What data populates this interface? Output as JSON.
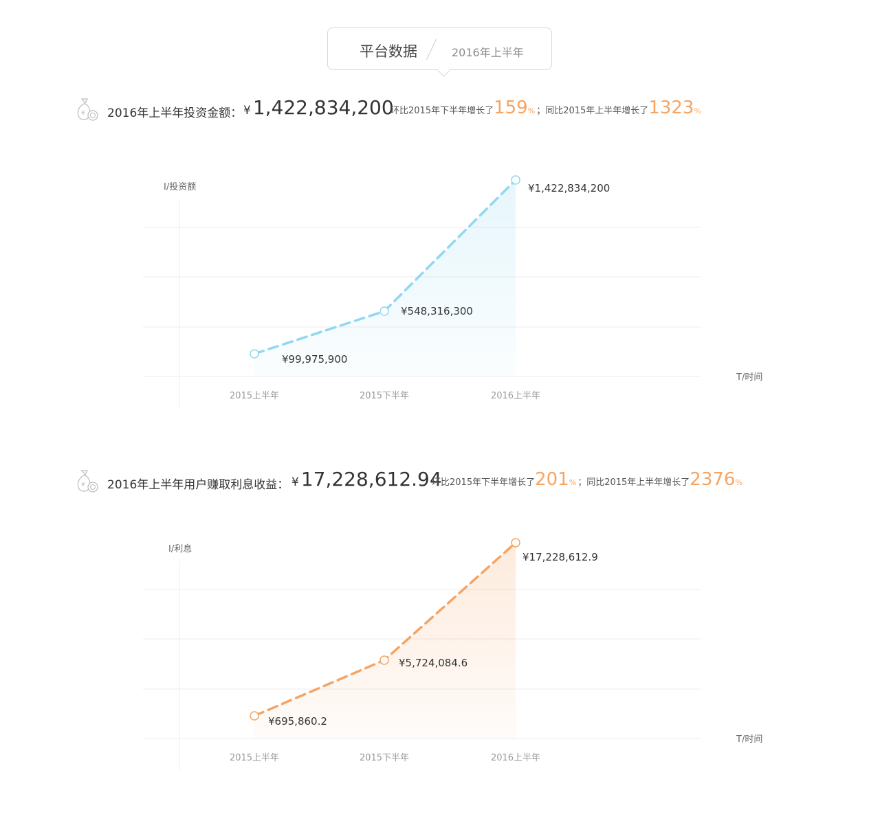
{
  "header": {
    "title": "平台数据",
    "subtitle": "2016年上半年"
  },
  "sections": [
    {
      "label": "2016年上半年投资金额：",
      "currency": "¥",
      "value": "1,422,834,200",
      "mom_prefix": "环比2015年下半年增长了",
      "mom_value": "159",
      "pct": "%",
      "sep": "；",
      "yoy_prefix": "同比2015年上半年增长了",
      "yoy_value": "1323"
    },
    {
      "label": "2016年上半年用户赚取利息收益：",
      "currency": "¥",
      "value": "17,228,612.94",
      "mom_prefix": "环比2015年下半年增长了",
      "mom_value": "201",
      "pct": "%",
      "sep": "；",
      "yoy_prefix": "同比2015年上半年增长了",
      "yoy_value": "2376"
    }
  ],
  "colors": {
    "blue": "#8fd8f2",
    "orange": "#f5a463",
    "grid": "#ececec",
    "accent": "#f5a463"
  },
  "chart_data": [
    {
      "type": "area",
      "ylabel": "I/投资额",
      "xlabel": "T/时间",
      "categories": [
        "2015上半年",
        "2015下半年",
        "2016上半年"
      ],
      "values": [
        99975900,
        548316300,
        1422834200
      ],
      "data_labels": [
        "¥99,975,900",
        "¥548,316,300",
        "¥1,422,834,200"
      ],
      "line_style": "dashed",
      "color": "#8fd8f2",
      "grid": true
    },
    {
      "type": "area",
      "ylabel": "I/利息",
      "xlabel": "T/时间",
      "categories": [
        "2015上半年",
        "2015下半年",
        "2016上半年"
      ],
      "values": [
        695860.2,
        5724084.6,
        17228612.9
      ],
      "data_labels": [
        "¥695,860.2",
        "¥5,724,084.6",
        "¥17,228,612.9"
      ],
      "line_style": "dashed",
      "color": "#f5a463",
      "grid": true
    }
  ]
}
